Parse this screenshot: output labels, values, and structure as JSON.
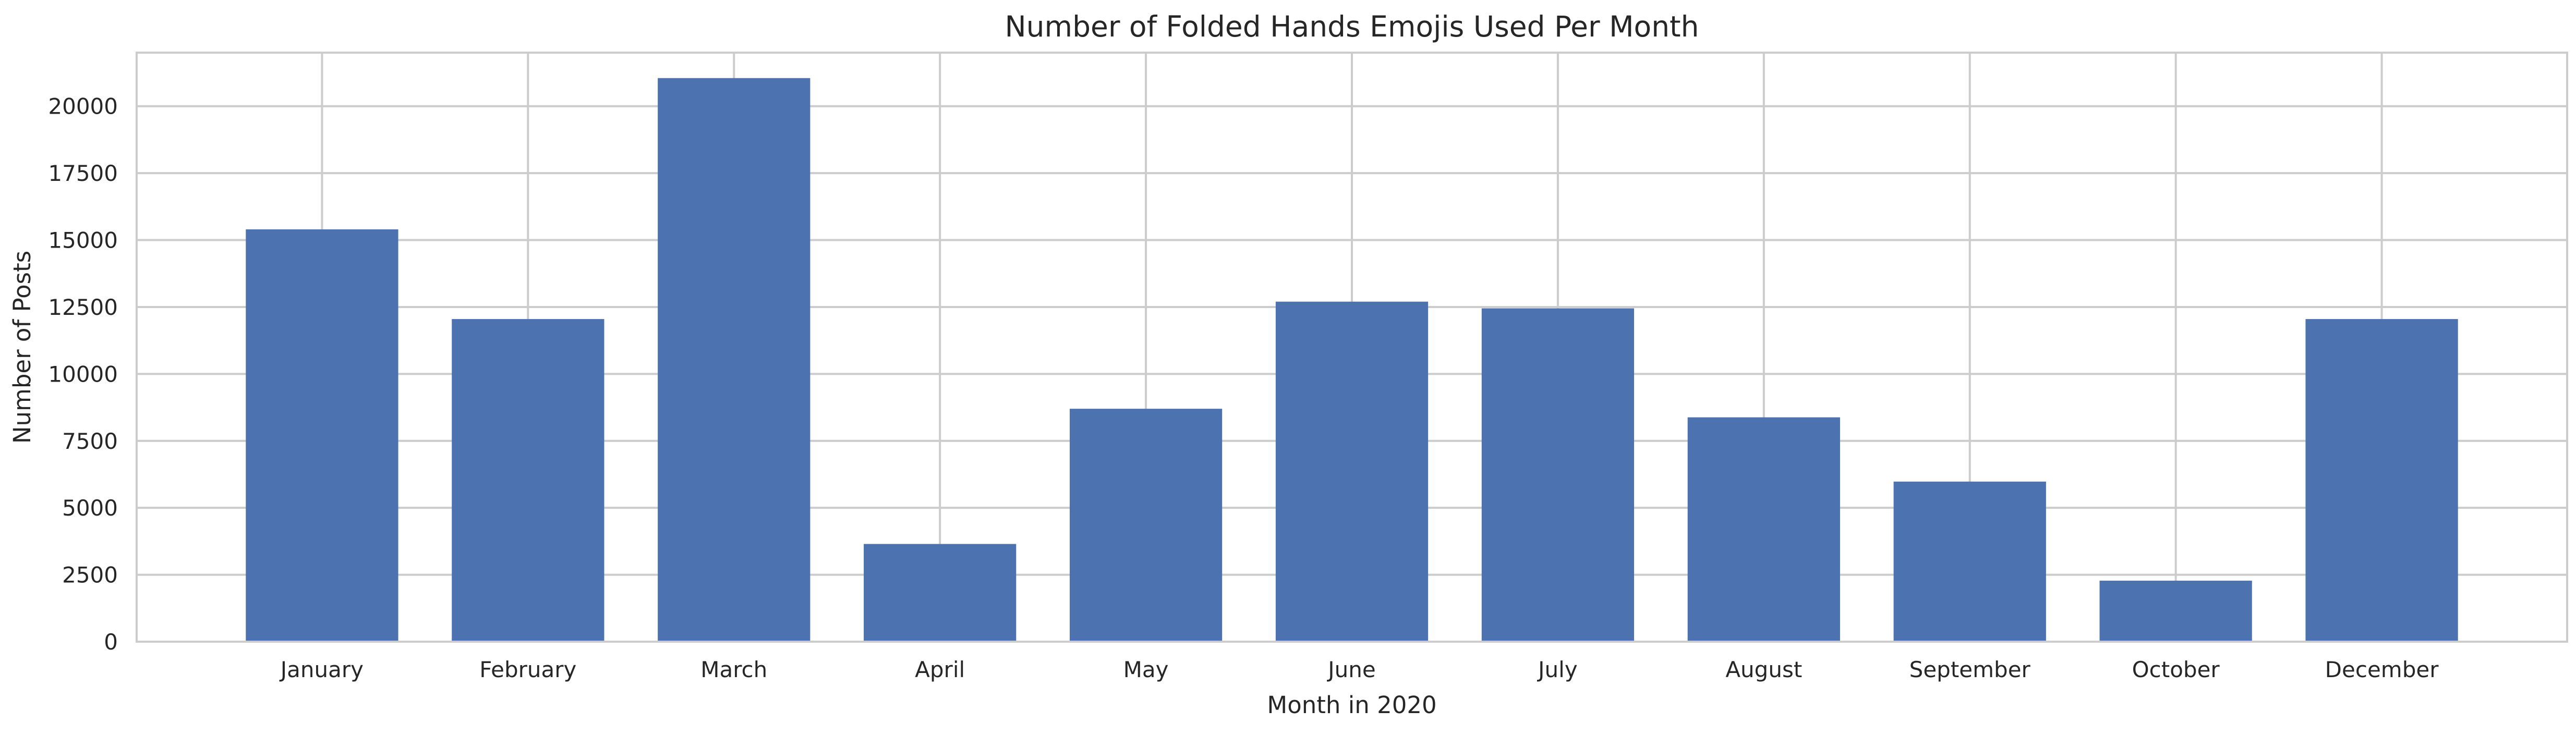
{
  "chart_data": {
    "type": "bar",
    "title": "Number of Folded Hands Emojis Used Per Month",
    "xlabel": "Month in 2020",
    "ylabel": "Number of Posts",
    "categories": [
      "January",
      "February",
      "March",
      "April",
      "May",
      "June",
      "July",
      "August",
      "September",
      "October",
      "December"
    ],
    "values": [
      15400,
      12050,
      21050,
      3650,
      8700,
      12700,
      12450,
      8380,
      5980,
      2280,
      12050
    ],
    "ylim": [
      0,
      22000
    ],
    "yticks": [
      0,
      2500,
      5000,
      7500,
      10000,
      12500,
      15000,
      17500,
      20000
    ],
    "ytick_labels": [
      "0",
      "2500",
      "5000",
      "7500",
      "10000",
      "12500",
      "15000",
      "17500",
      "20000"
    ],
    "grid": true,
    "legend": "none",
    "colors": {
      "bar": "#4c72b0",
      "grid": "#cccccc",
      "frame": "#cccccc",
      "text": "#262626"
    }
  }
}
